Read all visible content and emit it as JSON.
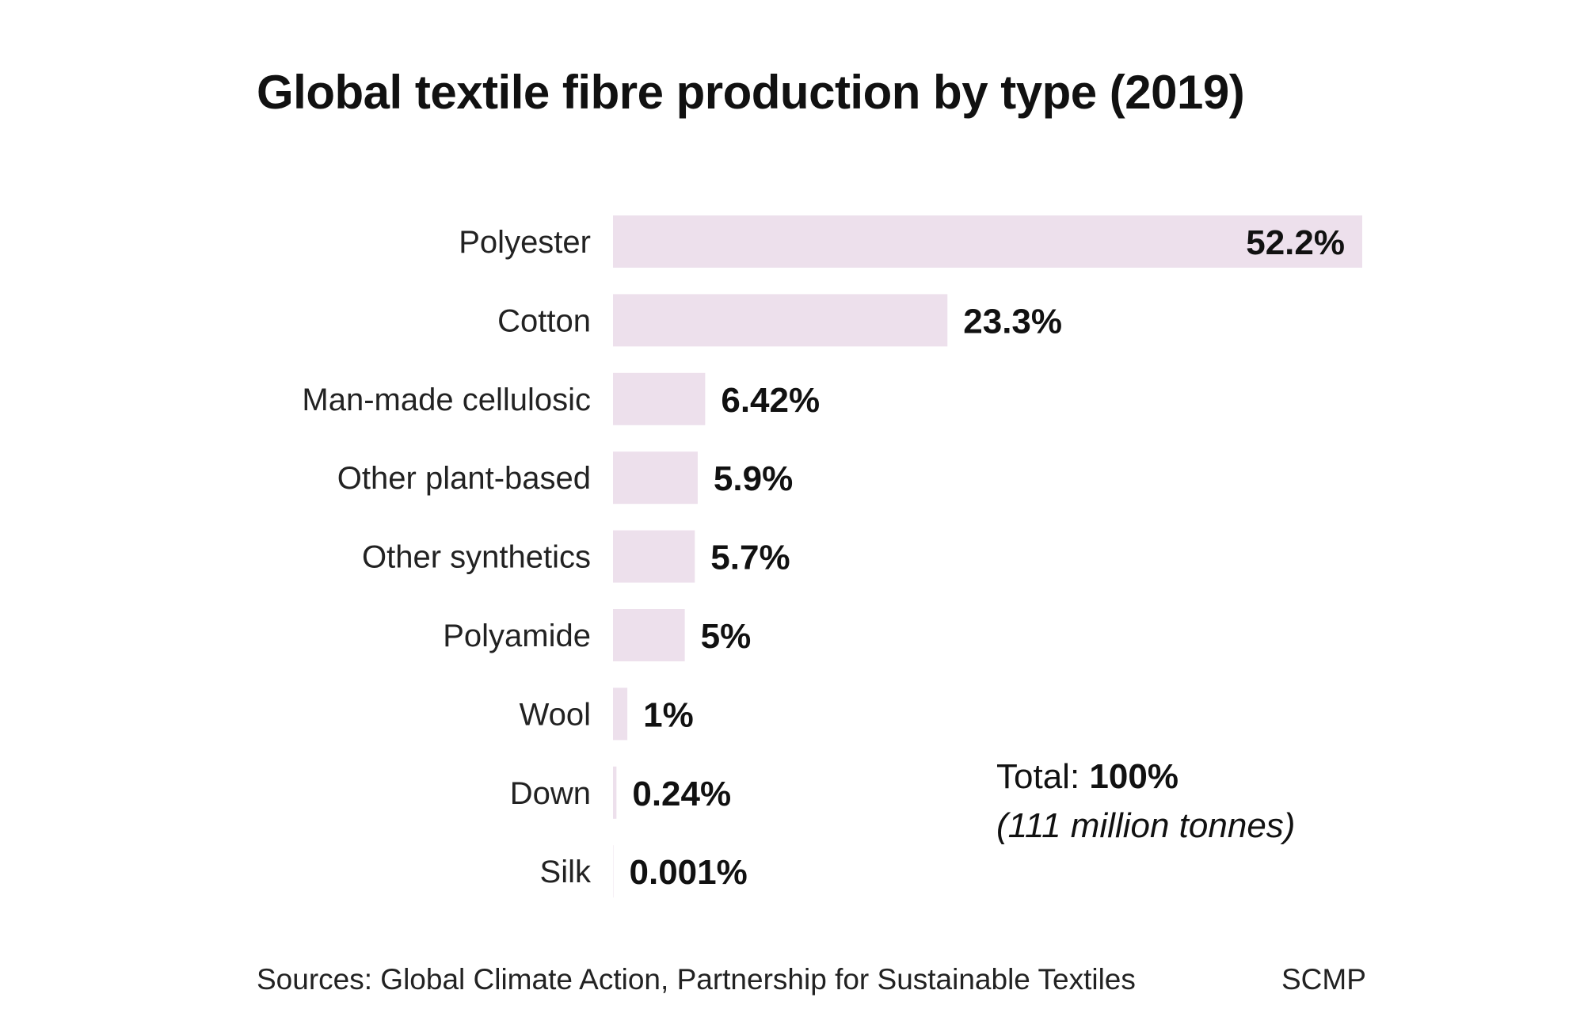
{
  "chart_data": {
    "type": "bar",
    "orientation": "horizontal",
    "title": "Global textile fibre production by type (2019)",
    "categories": [
      "Polyester",
      "Cotton",
      "Man-made cellulosic",
      "Other plant-based",
      "Other synthetics",
      "Polyamide",
      "Wool",
      "Down",
      "Silk"
    ],
    "values": [
      52.2,
      23.3,
      6.42,
      5.9,
      5.7,
      5,
      1,
      0.24,
      0.001
    ],
    "value_labels": [
      "52.2%",
      "23.3%",
      "6.42%",
      "5.9%",
      "5.7%",
      "5%",
      "1%",
      "0.24%",
      "0.001%"
    ],
    "unit": "%",
    "xlim": [
      0,
      52.2
    ],
    "grid": false,
    "legend": "none",
    "bar_color": "#ede0ec",
    "annotation": {
      "total_label": "Total:",
      "total_value": "100%",
      "total_note": "(111 million tonnes)"
    }
  },
  "footer": {
    "source": "Sources: Global Climate Action, Partnership for Sustainable Textiles",
    "credit": "SCMP"
  }
}
